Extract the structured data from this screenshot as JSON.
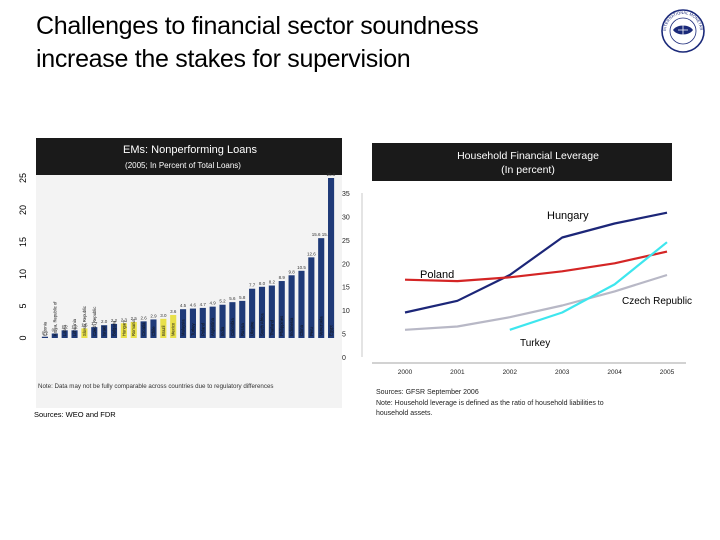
{
  "slide": {
    "title_line1": "Challenges to financial sector soundness",
    "title_line2": "increase the stakes for supervision",
    "logo_text": "INTERNATIONAL MONETARY FUND"
  },
  "left_notes": {
    "note": "Note: Data may not be fully comparable across countries due to regulatory differences",
    "sources": "Sources: WEO and FDR"
  },
  "right_notes": {
    "sources": "Sources: GFSR September 2006",
    "note_line1": "Note: Household leverage is defined as the ratio of household liabilities to",
    "note_line2": "household assets."
  },
  "colors": {
    "bar": "#1f3a78",
    "bar_highlight": "#e8e04a",
    "header_bg": "#1a1a1a",
    "hungary": "#1c2678",
    "poland": "#d42525",
    "czech": "#b8b8c6",
    "turkey": "#3ee6ee"
  },
  "chart_data": [
    {
      "type": "bar",
      "title": "EMs: Nonperforming Loans",
      "subtitle": "(2005; In Percent of Total Loans)",
      "ylim": [
        0,
        25
      ],
      "yticks": [
        0,
        5,
        10,
        15,
        20,
        25
      ],
      "categories": [
        "Estonia",
        "Korea, Republic of",
        "Latvia",
        "Lithuania",
        "Slovak Republic",
        "Czech Republic",
        "Israel",
        "Bulgaria",
        "Hungary",
        "Romania",
        "Croatia",
        "Chile",
        "Brazil",
        "Mexico",
        "Malaysia",
        "Turkey",
        "Poland",
        "Argentina",
        "India",
        "Colombia",
        "Russia",
        "Ukraine",
        "South Africa",
        "Thailand",
        "Philippines",
        "Indonesia",
        "China",
        "Peru",
        "Venezuela",
        "Egypt"
      ],
      "values": [
        0.2,
        0.7,
        1.2,
        1.2,
        1.5,
        1.7,
        2.0,
        2.2,
        2.3,
        2.5,
        2.6,
        2.9,
        3.0,
        3.6,
        4.5,
        4.6,
        4.7,
        4.9,
        5.2,
        5.6,
        5.8,
        7.7,
        8.0,
        8.2,
        8.9,
        9.8,
        10.5,
        12.6,
        15.6,
        25.0
      ],
      "labels": [
        "0.2",
        "0.7",
        "1.2",
        "1.2",
        "1.5",
        "1.7",
        "2.0",
        "2.2",
        "2.3",
        "2.5",
        "2.6",
        "2.9",
        "3.0",
        "3.6",
        "4.5",
        "4.6",
        "4.7",
        "4.9",
        "5.2",
        "5.6",
        "5.8",
        "7.7",
        "8.0",
        "8.2",
        "8.9",
        "9.8",
        "10.5",
        "12.6",
        "15.6 15.7",
        "25.0"
      ],
      "highlight": [
        4,
        8,
        9,
        12,
        13
      ]
    },
    {
      "type": "line",
      "title": "Household Financial Leverage",
      "subtitle": "(In percent)",
      "x": [
        "2000",
        "2001",
        "2002",
        "2003",
        "2004",
        "2005"
      ],
      "ylim": [
        0,
        35
      ],
      "yticks": [
        0,
        5,
        10,
        15,
        20,
        25,
        30,
        35
      ],
      "series": [
        {
          "name": "Hungary",
          "values": [
            9.5,
            12.0,
            17.5,
            25.5,
            28.5,
            30.8
          ]
        },
        {
          "name": "Poland",
          "values": [
            16.5,
            16.2,
            17.0,
            18.3,
            20.0,
            22.5
          ]
        },
        {
          "name": "Czech Republic",
          "values": [
            5.8,
            6.5,
            8.5,
            11.0,
            14.0,
            17.5
          ]
        },
        {
          "name": "Turkey",
          "values": [
            null,
            null,
            5.8,
            9.5,
            15.5,
            24.5
          ]
        }
      ]
    }
  ]
}
